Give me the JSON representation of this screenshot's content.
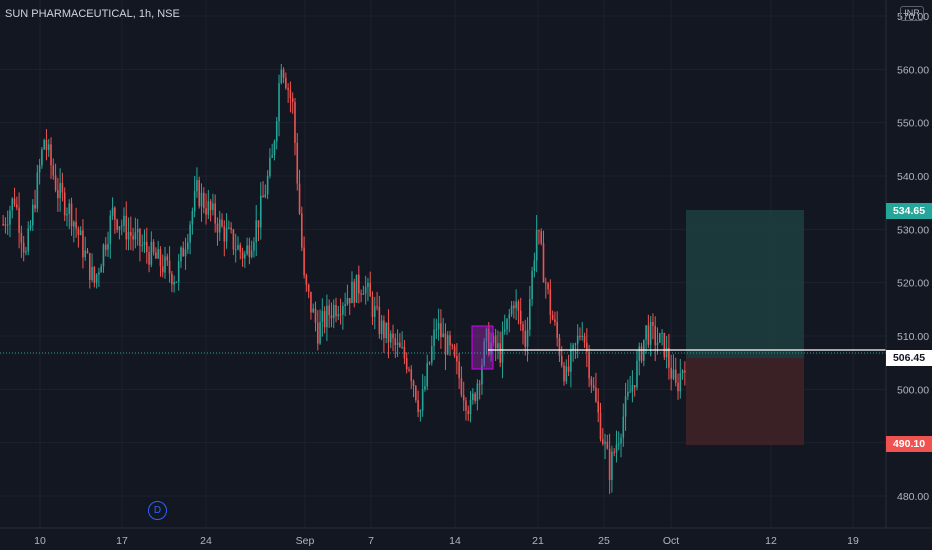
{
  "header": {
    "title": "SUN PHARMACEUTICAL, 1h, NSE",
    "currency": "INR"
  },
  "price_badges": {
    "target": "534.65",
    "current": "506.45",
    "stop": "490.10"
  },
  "dividend_marker": "D",
  "colors": {
    "background": "#131722",
    "up": "#26a69a",
    "down": "#ef5350",
    "grid": "#1e222d",
    "profit_zone": "#1d3f40",
    "loss_zone": "#3f2227",
    "highlight_box": "#9c27b0"
  },
  "chart_data": {
    "type": "candlestick",
    "title": "SUN PHARMACEUTICAL, 1h, NSE",
    "y_ticks": [
      480,
      490,
      500,
      510,
      520,
      530,
      540,
      550,
      560,
      570
    ],
    "y_tick_labels": [
      "480.00",
      "490.00",
      "500.00",
      "510.00",
      "520.00",
      "530.00",
      "540.00",
      "550.00",
      "560.00",
      "570.00"
    ],
    "x_tick_labels": [
      "10",
      "17",
      "24",
      "Sep",
      "7",
      "14",
      "21",
      "25",
      "Oct",
      "12",
      "19"
    ],
    "ylim": [
      474,
      573
    ],
    "current_price": 506.45,
    "target_price": 534.65,
    "stop_price": 490.1,
    "trend_anchors": [
      {
        "t": 0,
        "p": 531
      },
      {
        "t": 5,
        "p": 536
      },
      {
        "t": 10,
        "p": 525
      },
      {
        "t": 18,
        "p": 547
      },
      {
        "t": 24,
        "p": 537
      },
      {
        "t": 30,
        "p": 533
      },
      {
        "t": 40,
        "p": 520
      },
      {
        "t": 48,
        "p": 533
      },
      {
        "t": 58,
        "p": 528
      },
      {
        "t": 68,
        "p": 524
      },
      {
        "t": 76,
        "p": 521
      },
      {
        "t": 85,
        "p": 537
      },
      {
        "t": 96,
        "p": 530
      },
      {
        "t": 106,
        "p": 525
      },
      {
        "t": 112,
        "p": 532
      },
      {
        "t": 118,
        "p": 543
      },
      {
        "t": 122,
        "p": 562
      },
      {
        "t": 127,
        "p": 553
      },
      {
        "t": 132,
        "p": 520
      },
      {
        "t": 138,
        "p": 511
      },
      {
        "t": 144,
        "p": 515
      },
      {
        "t": 152,
        "p": 518
      },
      {
        "t": 158,
        "p": 520
      },
      {
        "t": 165,
        "p": 512
      },
      {
        "t": 172,
        "p": 508
      },
      {
        "t": 178,
        "p": 505
      },
      {
        "t": 183,
        "p": 496
      },
      {
        "t": 190,
        "p": 512
      },
      {
        "t": 197,
        "p": 506
      },
      {
        "t": 205,
        "p": 496
      },
      {
        "t": 212,
        "p": 509
      },
      {
        "t": 218,
        "p": 507
      },
      {
        "t": 224,
        "p": 517
      },
      {
        "t": 229,
        "p": 509
      },
      {
        "t": 234,
        "p": 530
      },
      {
        "t": 240,
        "p": 515
      },
      {
        "t": 247,
        "p": 502
      },
      {
        "t": 254,
        "p": 512
      },
      {
        "t": 260,
        "p": 497
      },
      {
        "t": 266,
        "p": 485
      },
      {
        "t": 272,
        "p": 495
      },
      {
        "t": 278,
        "p": 504
      },
      {
        "t": 282,
        "p": 511
      },
      {
        "t": 290,
        "p": 508
      },
      {
        "t": 295,
        "p": 500
      },
      {
        "t": 300,
        "p": 507
      }
    ],
    "candle_count": 300
  }
}
